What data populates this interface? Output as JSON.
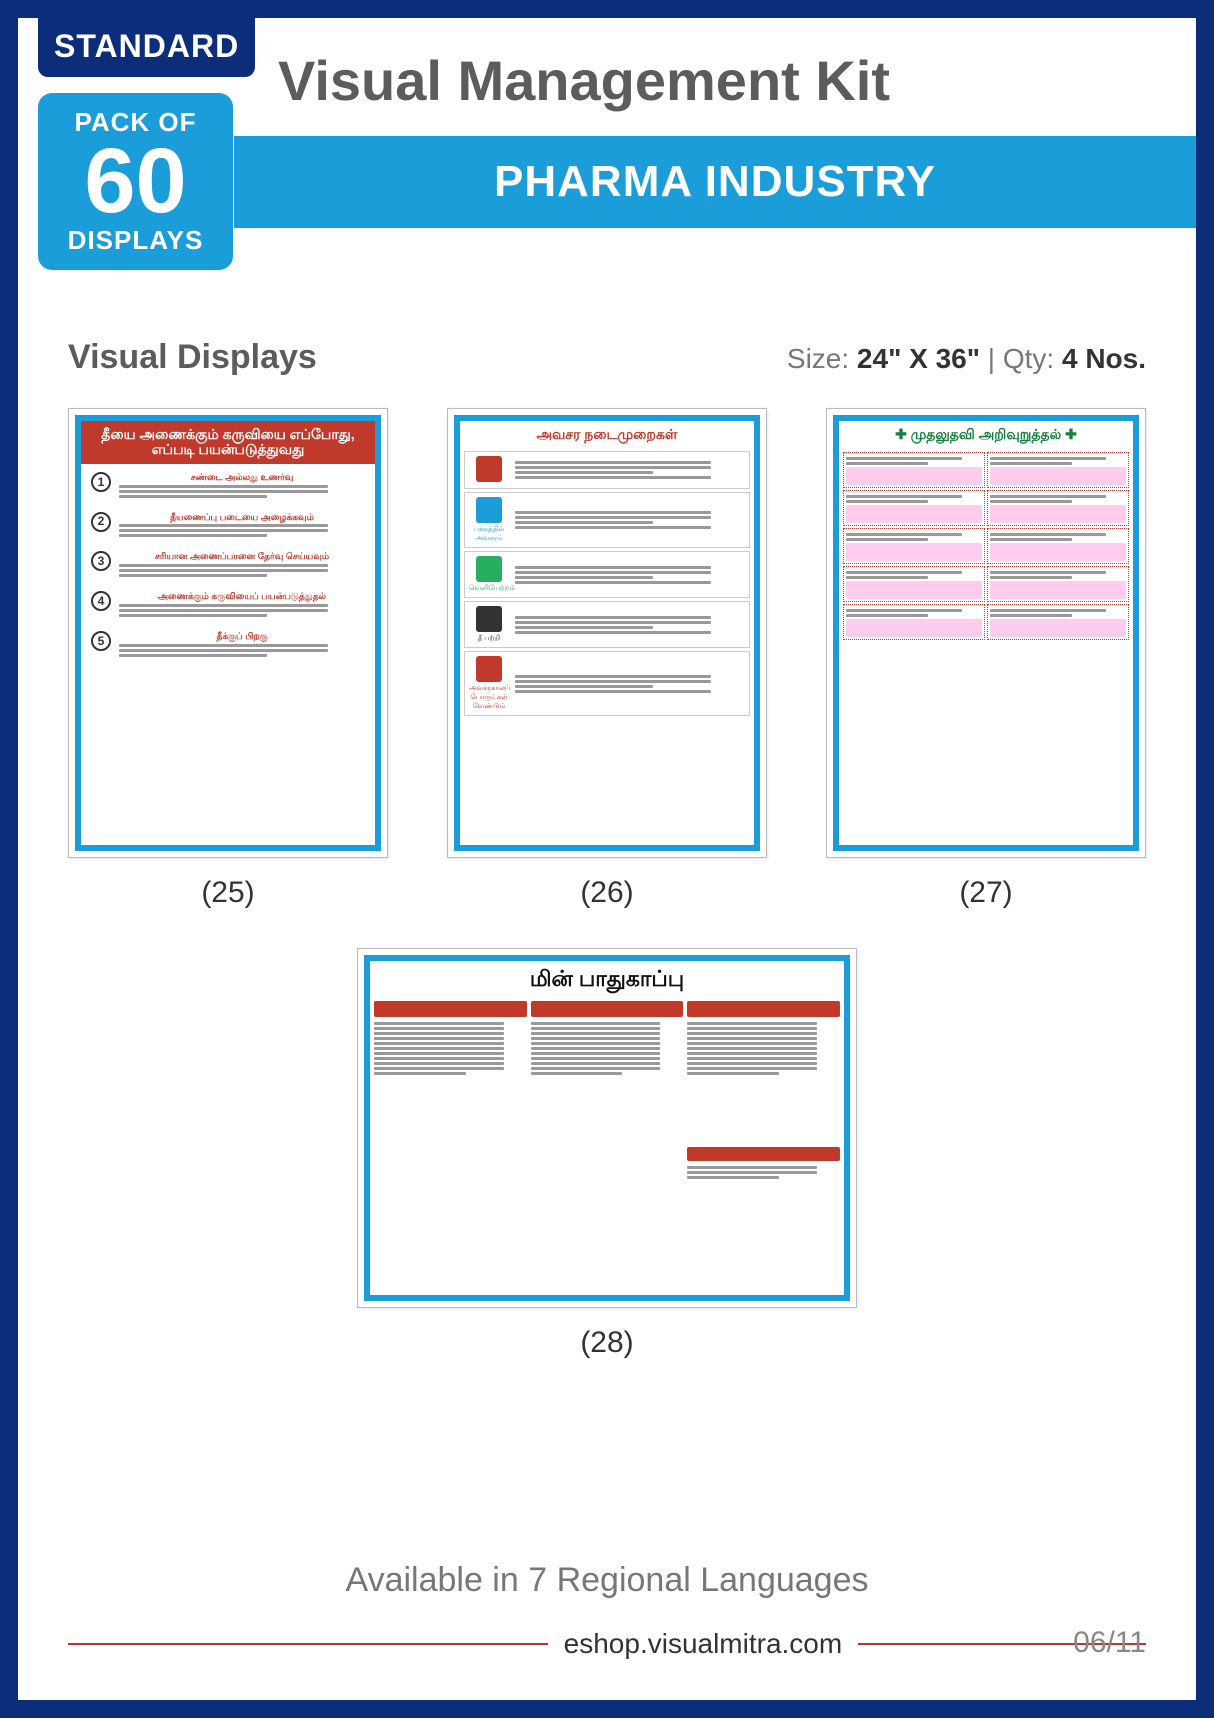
{
  "frame_border_color": "#0c2e7a",
  "accent_color": "#1b9dd9",
  "badge_standard": "STANDARD",
  "pack": {
    "top": "PACK OF",
    "num": "60",
    "bottom": "DISPLAYS"
  },
  "main_title": "Visual Management Kit",
  "banner": "PHARMA INDUSTRY",
  "section": {
    "title": "Visual Displays",
    "size_label": "Size:",
    "size_val": "24\" X 36\"",
    "qty_label": "Qty:",
    "qty_val": "4 Nos."
  },
  "posters": [
    {
      "num": "(25)",
      "orientation": "portrait",
      "header_bg": "#c0392b",
      "header_color": "#ffffff",
      "title": "தீயை அணைக்கும் கருவியை எப்போது, எப்படி பயன்படுத்துவது",
      "style": "steps5",
      "steps": [
        "சண்டை அல்லது உணர்வு",
        "தீயணைப்பு படையை அழைக்கவும்",
        "சரியான அணைப்பானை தேர்வு செய்யவும்",
        "அணைக்கும் கருவியைப் பயன்படுத்துதல்",
        "தீக்குப் பிறகு"
      ]
    },
    {
      "num": "(26)",
      "orientation": "portrait",
      "header_bg": "#ffffff",
      "header_color": "#c0392b",
      "title": "அவசர நடைமுறைகள்",
      "style": "rows5",
      "row_icon_colors": [
        "#c0392b",
        "#1b9dd9",
        "#27ae60",
        "#333333",
        "#c0392b"
      ],
      "row_labels": [
        "",
        "பக்கத்தில் அவசரம்",
        "வெளியேற்றம்",
        "தீ பற்றி",
        "அவசரகாலப் பொருட்கள் வேண்டும்"
      ]
    },
    {
      "num": "(27)",
      "orientation": "portrait",
      "header_bg": "#ffffff",
      "header_color": "#15803d",
      "title": "✚ முதலுதவி அறிவுறுத்தல் ✚",
      "style": "grid",
      "grid_cols": 2,
      "grid_rows": 5
    },
    {
      "num": "(28)",
      "orientation": "landscape",
      "header_bg": "#ffffff",
      "header_color": "#111111",
      "title": "மின் பாதுகாப்பு",
      "style": "cols3",
      "col_header_bg": "#c0392b"
    }
  ],
  "footer": {
    "languages": "Available in 7 Regional Languages",
    "url": "eshop.visualmitra.com",
    "page": "06/11"
  }
}
